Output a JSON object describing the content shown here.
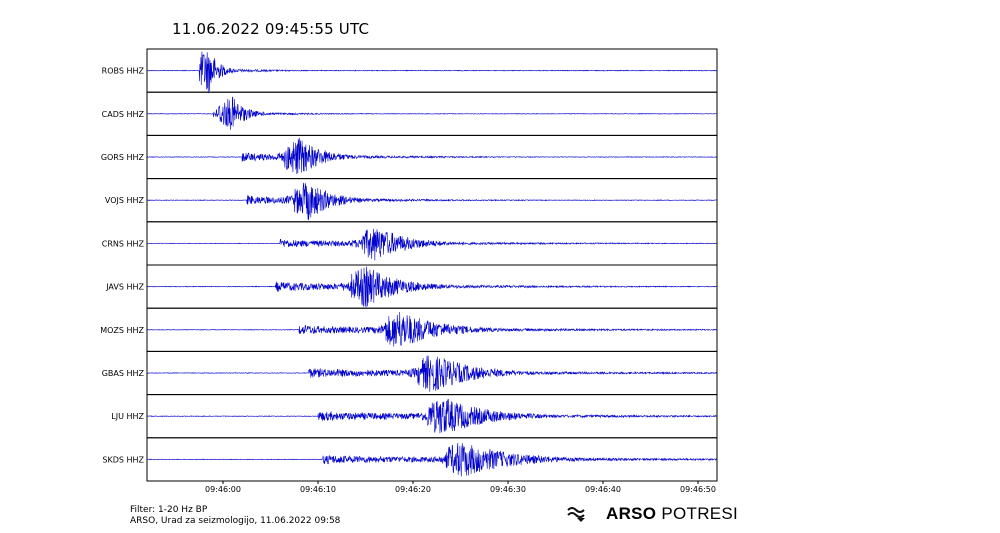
{
  "title": "11.06.2022  09:45:55 UTC",
  "chart_data": {
    "type": "line",
    "title": "11.06.2022  09:45:55 UTC",
    "xlabel": "",
    "ylabel": "",
    "x_start": "09:45:52",
    "x_end": "09:46:52",
    "xlim": [
      "09:45:52",
      "09:46:52"
    ],
    "xticks": [
      "09:46:00",
      "09:46:10",
      "09:46:20",
      "09:46:30",
      "09:46:40",
      "09:46:50"
    ],
    "grid": false,
    "color": "#0000cc",
    "series": [
      {
        "name": "ROBS HHZ",
        "p_arrival": "09:45:57.5",
        "s_peak": "09:45:58.5",
        "amplitude": 1.0,
        "coda": 3
      },
      {
        "name": "CADS HHZ",
        "p_arrival": "09:45:59",
        "s_peak": "09:46:01",
        "amplitude": 0.75,
        "coda": 4
      },
      {
        "name": "GORS HHZ",
        "p_arrival": "09:46:02",
        "s_peak": "09:46:08",
        "amplitude": 0.85,
        "coda": 7
      },
      {
        "name": "VOJS HHZ",
        "p_arrival": "09:46:02.5",
        "s_peak": "09:46:09",
        "amplitude": 0.85,
        "coda": 7
      },
      {
        "name": "CRNS HHZ",
        "p_arrival": "09:46:06",
        "s_peak": "09:46:16",
        "amplitude": 0.75,
        "coda": 10
      },
      {
        "name": "JAVS HHZ",
        "p_arrival": "09:46:05.5",
        "s_peak": "09:46:15",
        "amplitude": 0.9,
        "coda": 10
      },
      {
        "name": "MOZS HHZ",
        "p_arrival": "09:46:08",
        "s_peak": "09:46:18.5",
        "amplitude": 0.85,
        "coda": 12
      },
      {
        "name": "GBAS HHZ",
        "p_arrival": "09:46:09",
        "s_peak": "09:46:22",
        "amplitude": 0.85,
        "coda": 12
      },
      {
        "name": "LJU HHZ",
        "p_arrival": "09:46:10",
        "s_peak": "09:46:23",
        "amplitude": 0.85,
        "coda": 13
      },
      {
        "name": "SKDS HHZ",
        "p_arrival": "09:46:10.5",
        "s_peak": "09:46:25",
        "amplitude": 0.8,
        "coda": 15
      }
    ]
  },
  "footer": {
    "filter": "Filter: 1-20 Hz BP",
    "credit": " ARSO, Urad za seizmologijo, 11.06.2022  09:58"
  },
  "logo": {
    "icon": "arso-wave-icon",
    "bold": "ARSO",
    "light": " POTRESI"
  }
}
